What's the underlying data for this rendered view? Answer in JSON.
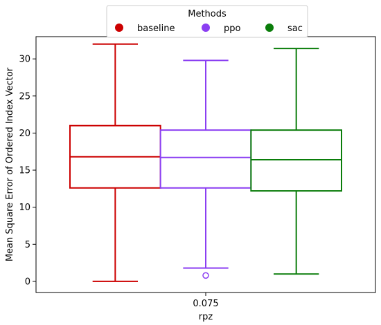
{
  "chart_data": {
    "type": "box",
    "xlabel": "rpz",
    "ylabel": "Mean Square Error of Ordered Index Vector",
    "categories": [
      "0.075"
    ],
    "ylim": [
      -1.5,
      33
    ],
    "yticks": [
      0,
      5,
      10,
      15,
      20,
      25,
      30
    ],
    "grid": false,
    "legend": {
      "title": "Methods",
      "placement": "top-center",
      "entries": [
        "baseline",
        "ppo",
        "sac"
      ]
    },
    "series": [
      {
        "name": "baseline",
        "color": "#cc0000",
        "whisker_low": 0.0,
        "q1": 12.6,
        "median": 16.8,
        "q3": 21.0,
        "whisker_high": 32.0,
        "outliers": []
      },
      {
        "name": "ppo",
        "color": "#8b3ff2",
        "whisker_low": 1.8,
        "q1": 12.6,
        "median": 16.7,
        "q3": 20.4,
        "whisker_high": 29.8,
        "outliers": [
          0.8
        ]
      },
      {
        "name": "sac",
        "color": "#0a7d0a",
        "whisker_low": 1.0,
        "q1": 12.2,
        "median": 16.4,
        "q3": 20.4,
        "whisker_high": 31.4,
        "outliers": []
      }
    ]
  }
}
